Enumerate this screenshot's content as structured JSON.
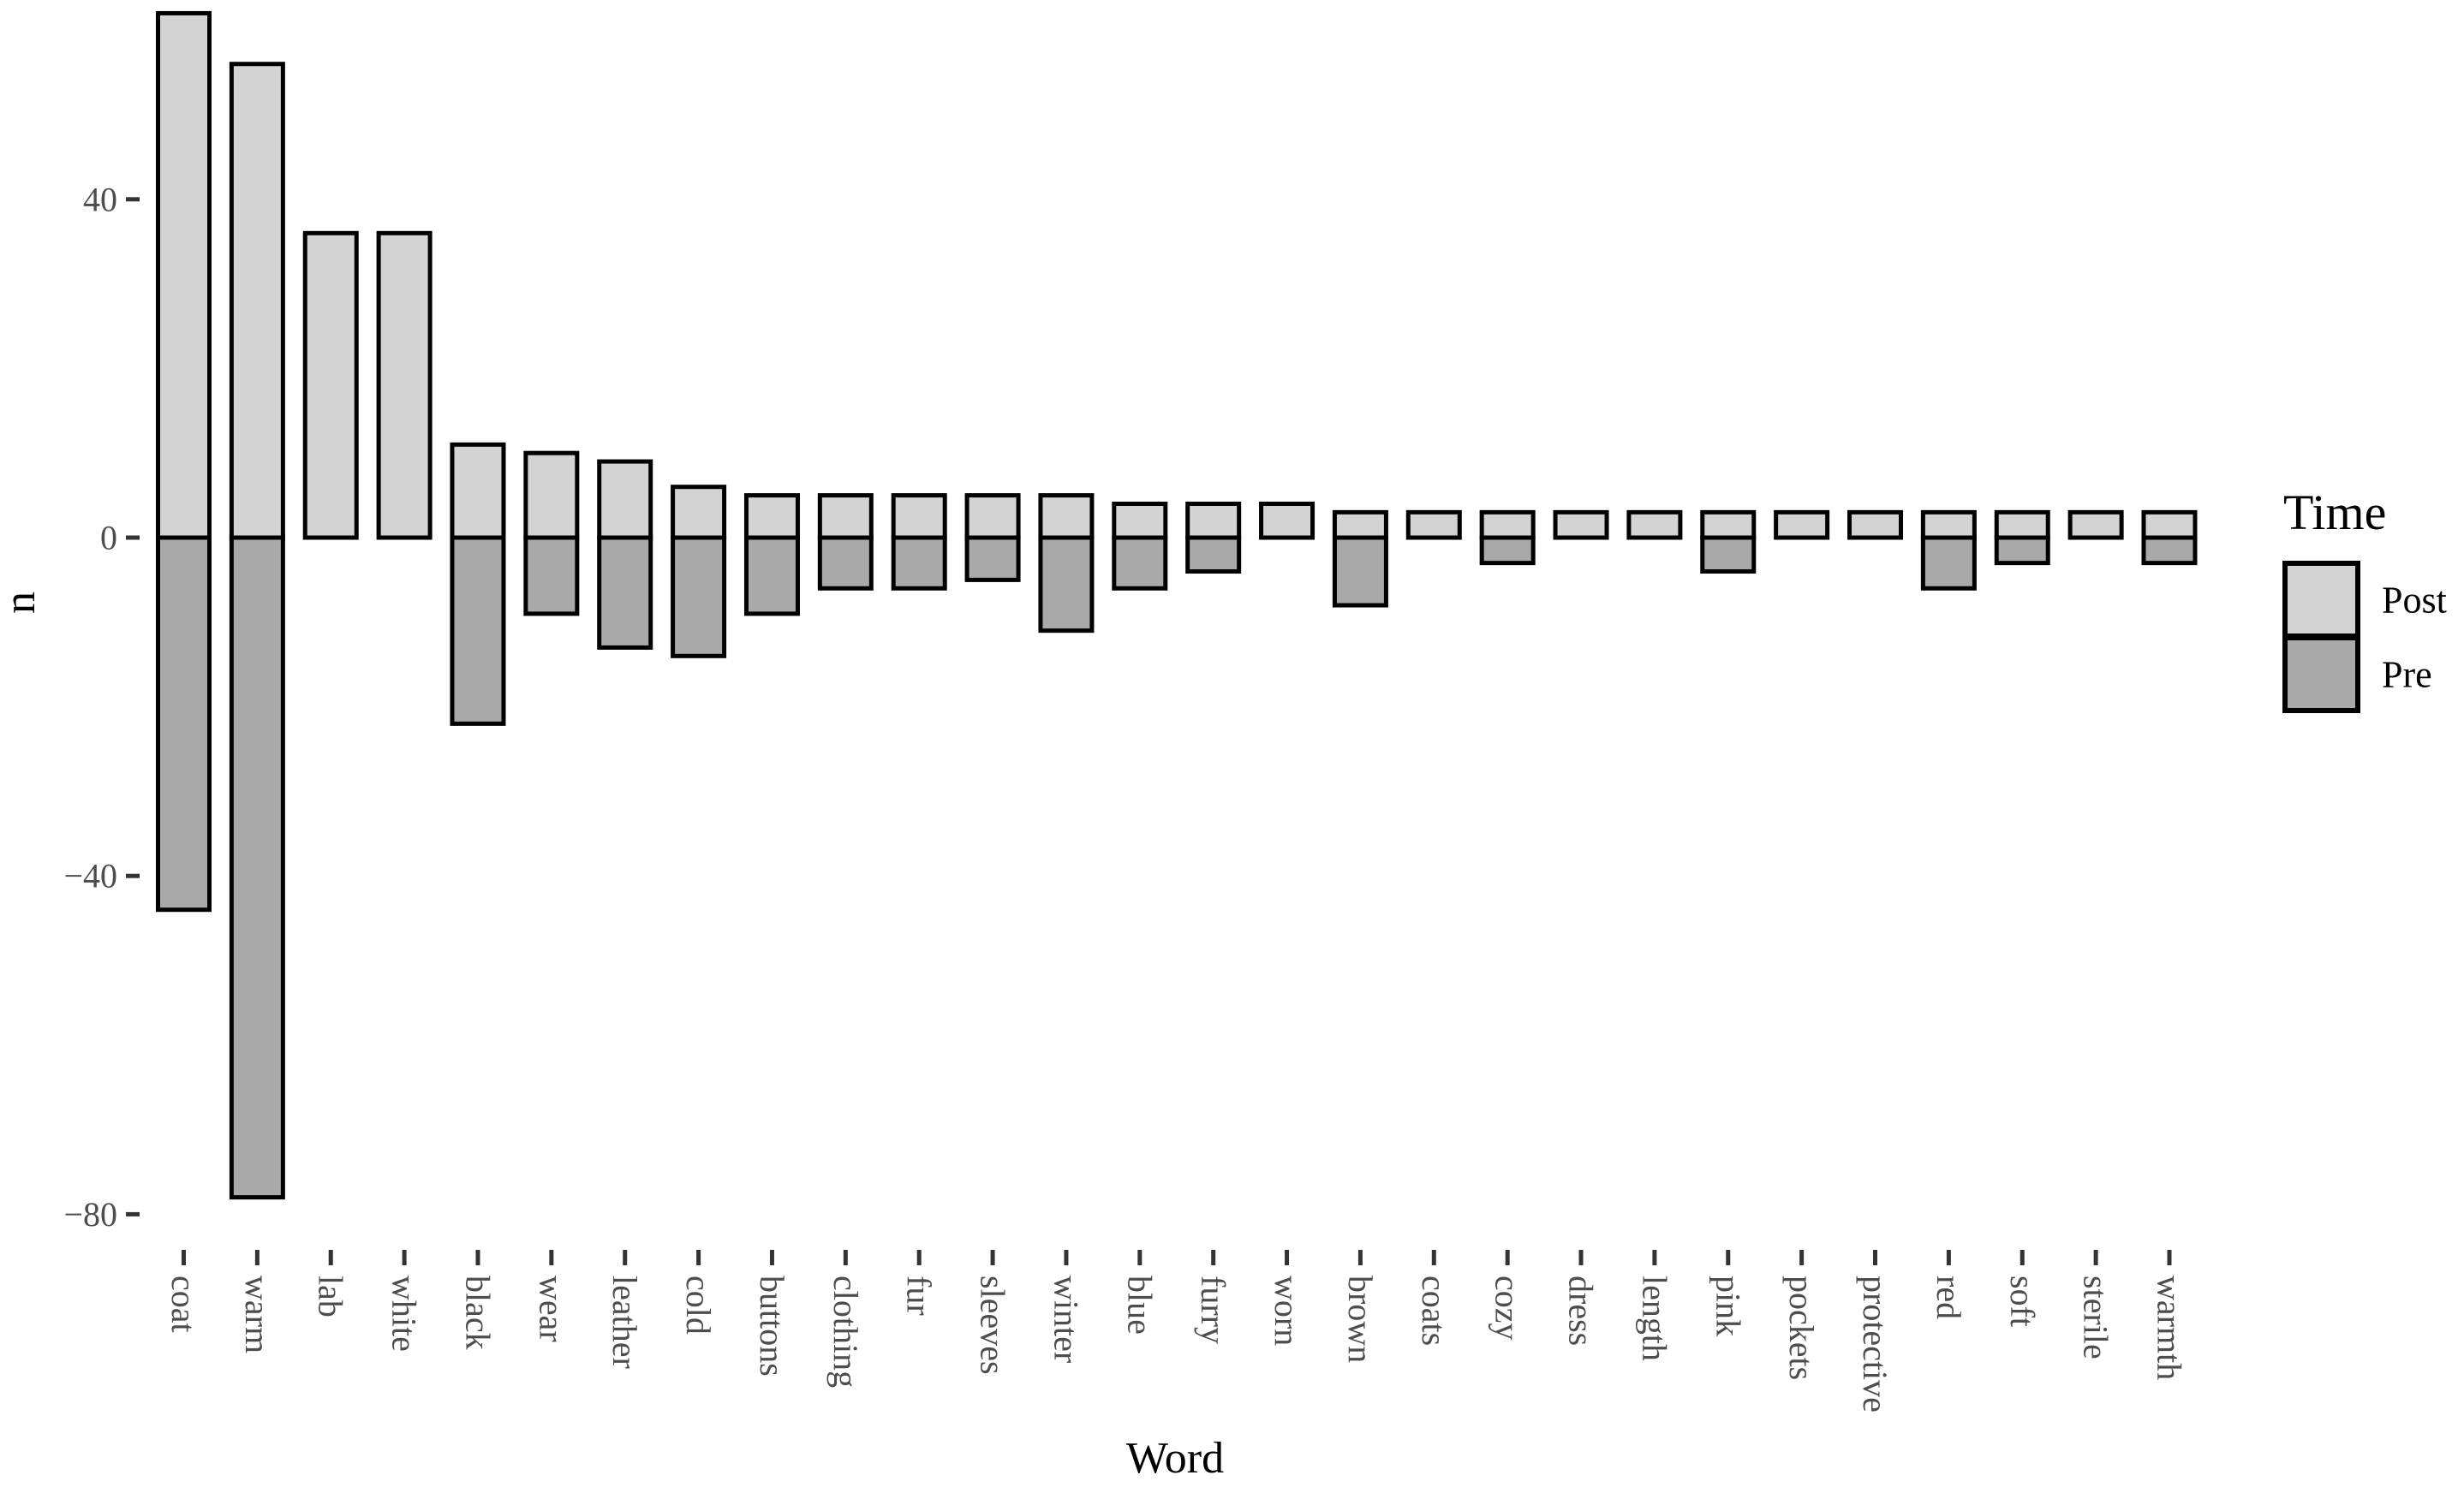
{
  "chart_data": {
    "type": "bar",
    "variant": "diverging-stacked-vertical",
    "title": "",
    "xlabel": "Word",
    "ylabel": "n",
    "grid": false,
    "legend": {
      "title": "Time",
      "position": "right",
      "entries": [
        {
          "label": "Post",
          "color": "#d3d3d3"
        },
        {
          "label": "Pre",
          "color": "#a9a9a9"
        }
      ]
    },
    "y_ticks": [
      {
        "value": 40,
        "label": "40"
      },
      {
        "value": 0,
        "label": "0"
      },
      {
        "value": -40,
        "label": "−40"
      },
      {
        "value": -80,
        "label": "−80"
      }
    ],
    "ylim": [
      -84,
      64
    ],
    "categories": [
      "coat",
      "warm",
      "lab",
      "white",
      "black",
      "wear",
      "leather",
      "cold",
      "buttons",
      "clothing",
      "fur",
      "sleeves",
      "winter",
      "blue",
      "furry",
      "worn",
      "brown",
      "coats",
      "cozy",
      "dress",
      "length",
      "pink",
      "pockets",
      "protective",
      "red",
      "soft",
      "sterile",
      "warmth"
    ],
    "series": [
      {
        "name": "Post",
        "color": "#d3d3d3",
        "values": [
          62,
          56,
          36,
          36,
          11,
          10,
          9,
          6,
          5,
          5,
          5,
          5,
          5,
          4,
          4,
          4,
          3,
          3,
          3,
          3,
          3,
          3,
          3,
          3,
          3,
          3,
          3,
          3
        ]
      },
      {
        "name": "Pre",
        "color": "#a9a9a9",
        "values": [
          -44,
          -78,
          0,
          0,
          -22,
          -9,
          -13,
          -14,
          -9,
          -6,
          -6,
          -5,
          -11,
          -6,
          -4,
          0,
          -8,
          0,
          -3,
          0,
          0,
          -4,
          0,
          0,
          -6,
          -3,
          0,
          -3
        ]
      }
    ],
    "bar_outline_color": "#000000",
    "axis_text_color": "#4d4d4d",
    "tick_mark_color": "#333333",
    "axis_title_color": "#000000"
  }
}
